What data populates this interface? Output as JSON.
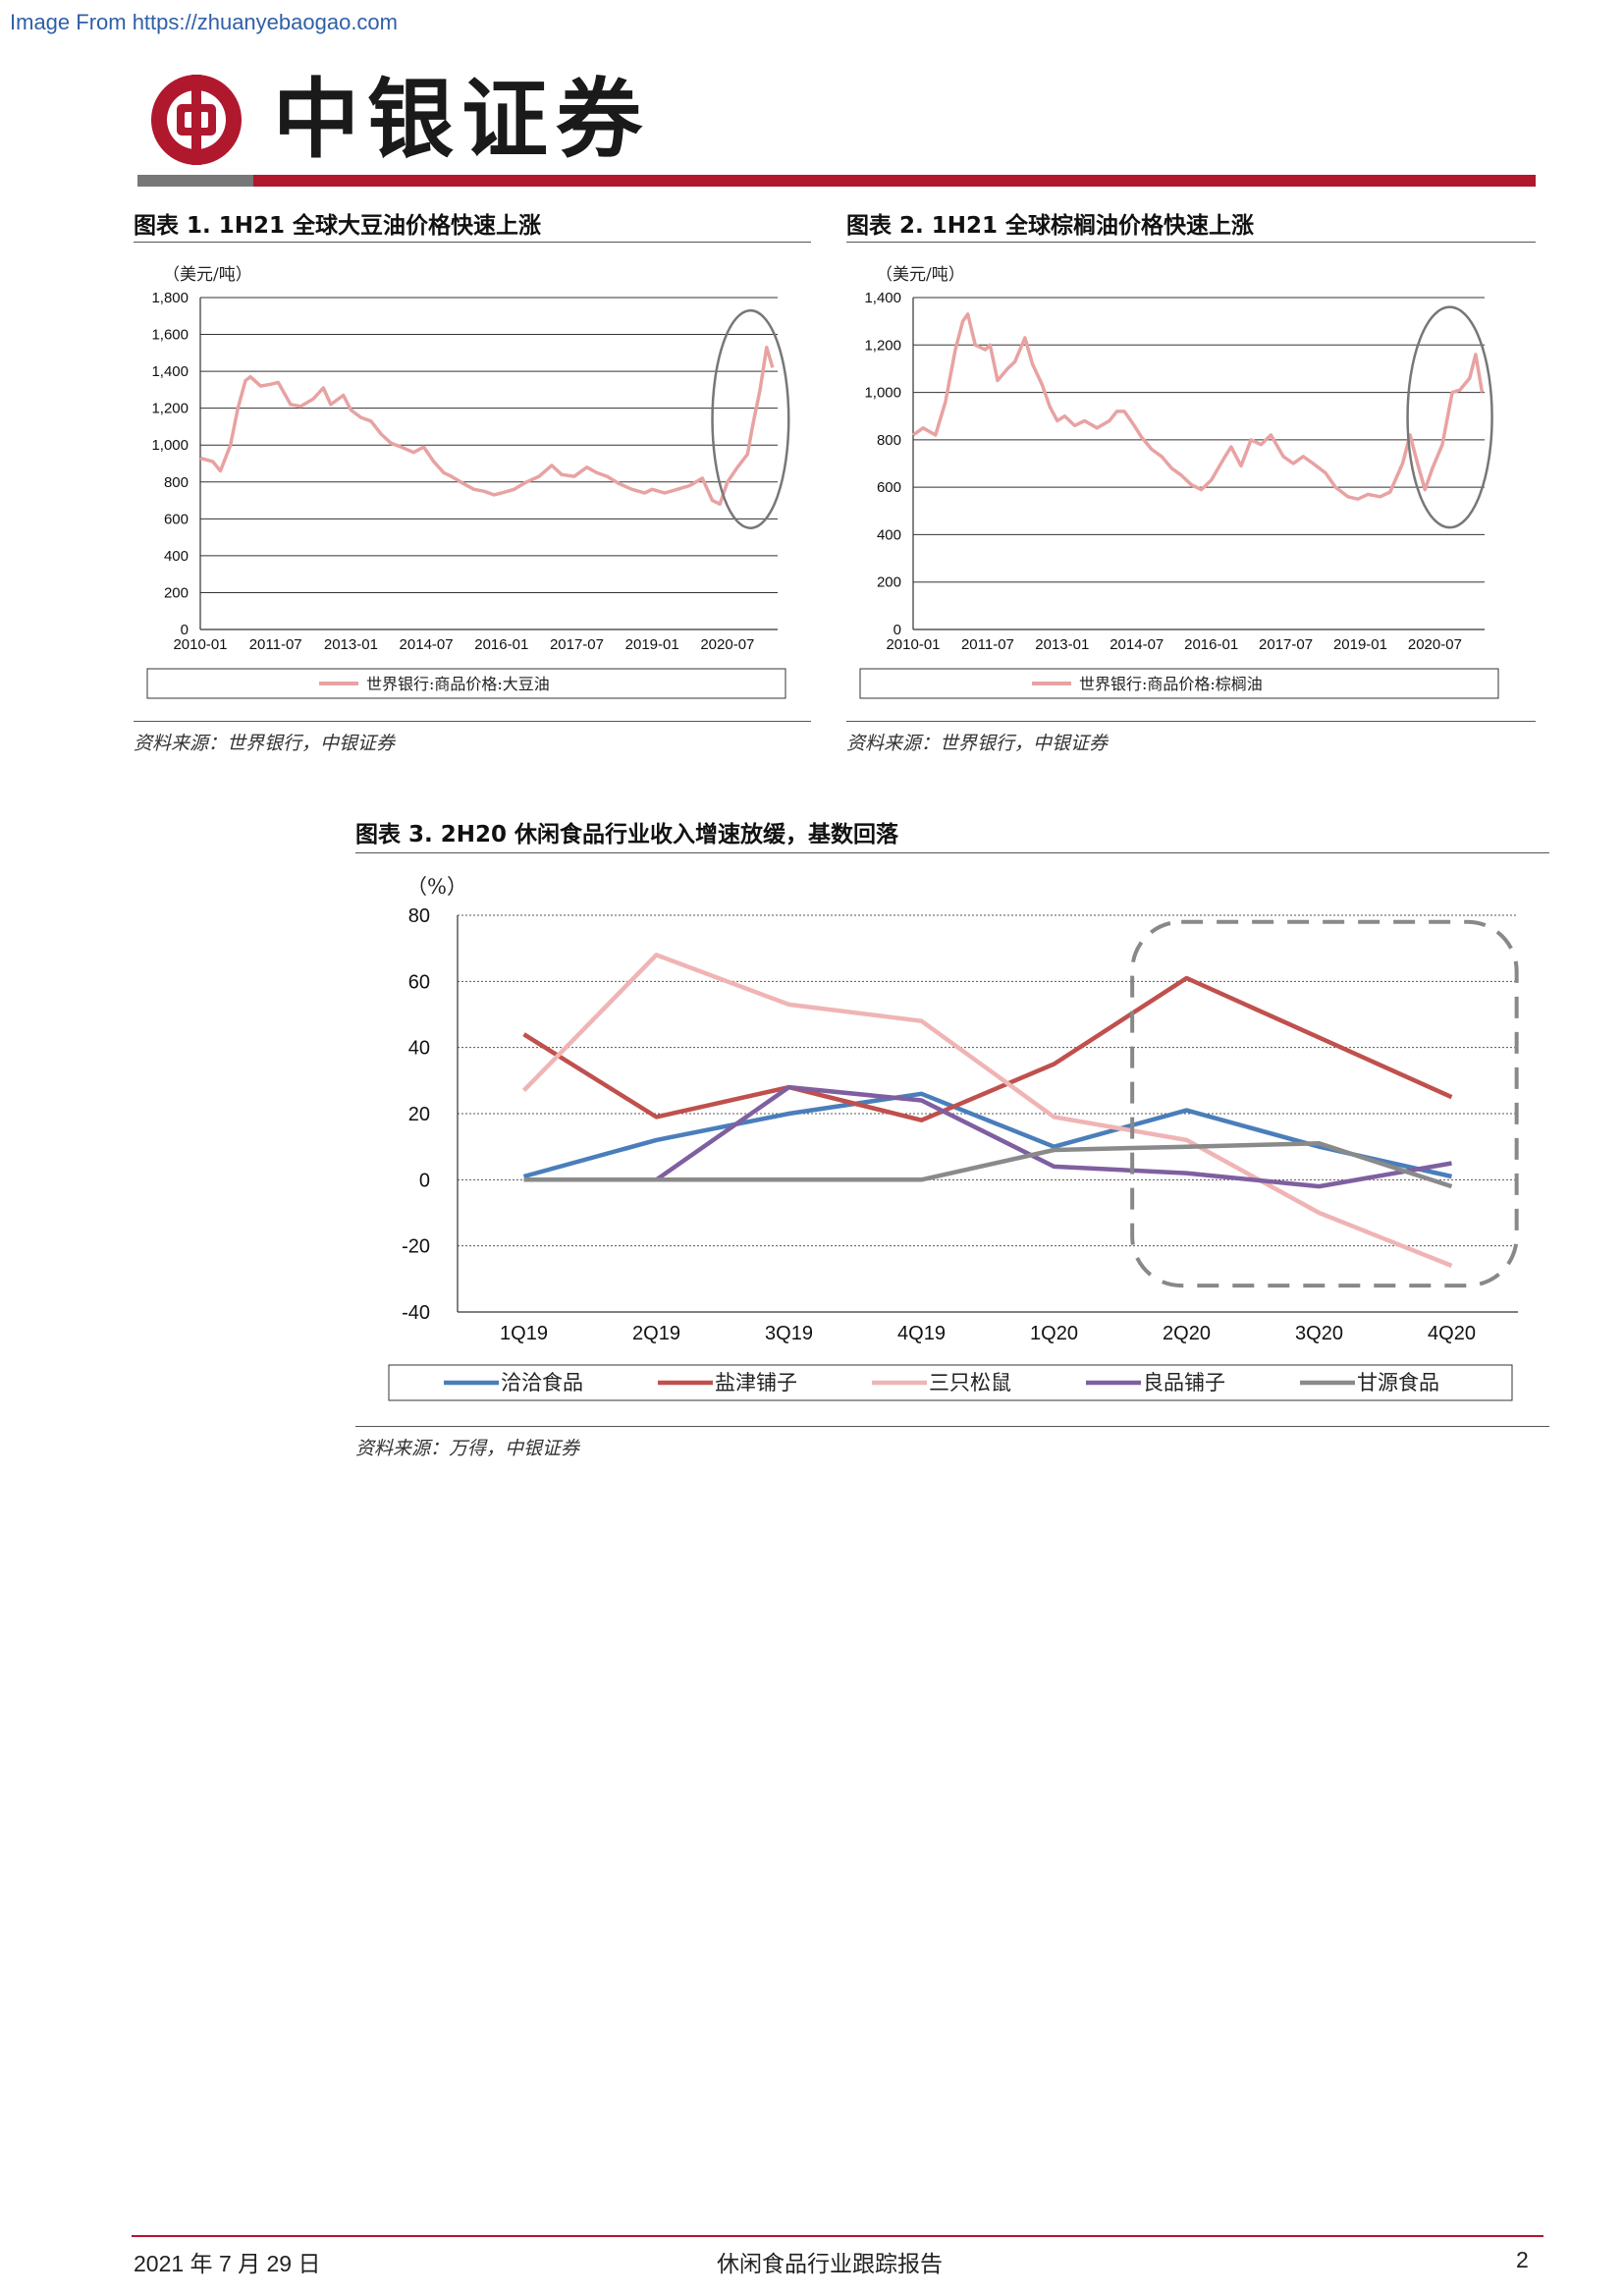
{
  "watermark": "Image From https://zhuanyebaogao.com",
  "header": {
    "brand": "中银证券"
  },
  "colors": {
    "brand_red": "#b0182e",
    "circle": "#777777"
  },
  "figures": [
    {
      "title": "图表 1. 1H21 全球大豆油价格快速上涨",
      "source": "资料来源：世界银行，中银证券"
    },
    {
      "title": "图表 2. 1H21 全球棕榈油价格快速上涨",
      "source": "资料来源：世界银行，中银证券"
    },
    {
      "title": "图表 3. 2H20 休闲食品行业收入增速放缓，基数回落",
      "source": "资料来源：万得，中银证券"
    }
  ],
  "chart_data": [
    {
      "type": "line",
      "unit": "（美元/吨）",
      "ylim": [
        0,
        1800
      ],
      "yticks": [
        "0",
        "200",
        "400",
        "600",
        "800",
        "1,000",
        "1,200",
        "1,400",
        "1,600",
        "1,800"
      ],
      "ytick_values": [
        0,
        200,
        400,
        600,
        800,
        1000,
        1200,
        1400,
        1600,
        1800
      ],
      "xlim": [
        2010.0,
        2021.5
      ],
      "xticks": [
        "2010-01",
        "2011-07",
        "2013-01",
        "2014-07",
        "2016-01",
        "2017-07",
        "2019-01",
        "2020-07"
      ],
      "xtick_values": [
        2010.0,
        2011.5,
        2013.0,
        2014.5,
        2016.0,
        2017.5,
        2019.0,
        2020.5
      ],
      "grid": true,
      "legend_position": "bottom",
      "annotation": "ellipse around 2020-07 to 2021-06",
      "series": [
        {
          "name": "世界银行:商品价格:大豆油",
          "color": "#e8a2a2",
          "points": [
            [
              2010.0,
              930
            ],
            [
              2010.25,
              910
            ],
            [
              2010.4,
              860
            ],
            [
              2010.6,
              1000
            ],
            [
              2010.75,
              1200
            ],
            [
              2010.9,
              1350
            ],
            [
              2011.0,
              1370
            ],
            [
              2011.2,
              1320
            ],
            [
              2011.4,
              1330
            ],
            [
              2011.55,
              1340
            ],
            [
              2011.8,
              1220
            ],
            [
              2012.0,
              1210
            ],
            [
              2012.25,
              1250
            ],
            [
              2012.45,
              1310
            ],
            [
              2012.6,
              1220
            ],
            [
              2012.85,
              1270
            ],
            [
              2013.0,
              1190
            ],
            [
              2013.2,
              1150
            ],
            [
              2013.4,
              1130
            ],
            [
              2013.6,
              1060
            ],
            [
              2013.8,
              1010
            ],
            [
              2014.0,
              990
            ],
            [
              2014.25,
              960
            ],
            [
              2014.45,
              990
            ],
            [
              2014.65,
              910
            ],
            [
              2014.85,
              850
            ],
            [
              2015.0,
              830
            ],
            [
              2015.25,
              790
            ],
            [
              2015.45,
              760
            ],
            [
              2015.65,
              750
            ],
            [
              2015.85,
              730
            ],
            [
              2016.0,
              740
            ],
            [
              2016.25,
              760
            ],
            [
              2016.5,
              800
            ],
            [
              2016.75,
              830
            ],
            [
              2017.0,
              890
            ],
            [
              2017.2,
              840
            ],
            [
              2017.45,
              830
            ],
            [
              2017.7,
              880
            ],
            [
              2017.9,
              850
            ],
            [
              2018.1,
              830
            ],
            [
              2018.35,
              790
            ],
            [
              2018.6,
              760
            ],
            [
              2018.85,
              740
            ],
            [
              2019.0,
              760
            ],
            [
              2019.25,
              740
            ],
            [
              2019.5,
              760
            ],
            [
              2019.75,
              780
            ],
            [
              2020.0,
              820
            ],
            [
              2020.2,
              700
            ],
            [
              2020.35,
              680
            ],
            [
              2020.5,
              800
            ],
            [
              2020.7,
              880
            ],
            [
              2020.9,
              950
            ],
            [
              2021.0,
              1100
            ],
            [
              2021.15,
              1300
            ],
            [
              2021.28,
              1530
            ],
            [
              2021.4,
              1420
            ]
          ]
        }
      ]
    },
    {
      "type": "line",
      "unit": "（美元/吨）",
      "ylim": [
        0,
        1400
      ],
      "yticks": [
        "0",
        "200",
        "400",
        "600",
        "800",
        "1,000",
        "1,200",
        "1,400"
      ],
      "ytick_values": [
        0,
        200,
        400,
        600,
        800,
        1000,
        1200,
        1400
      ],
      "xlim": [
        2010.0,
        2021.5
      ],
      "xticks": [
        "2010-01",
        "2011-07",
        "2013-01",
        "2014-07",
        "2016-01",
        "2017-07",
        "2019-01",
        "2020-07"
      ],
      "xtick_values": [
        2010.0,
        2011.5,
        2013.0,
        2014.5,
        2016.0,
        2017.5,
        2019.0,
        2020.5
      ],
      "grid": true,
      "legend_position": "bottom",
      "annotation": "ellipse around 2020-01 to 2021-06",
      "series": [
        {
          "name": "世界银行:商品价格:棕榈油",
          "color": "#e8a2a2",
          "points": [
            [
              2010.0,
              820
            ],
            [
              2010.2,
              850
            ],
            [
              2010.45,
              820
            ],
            [
              2010.65,
              960
            ],
            [
              2010.85,
              1180
            ],
            [
              2011.0,
              1300
            ],
            [
              2011.1,
              1330
            ],
            [
              2011.25,
              1200
            ],
            [
              2011.45,
              1180
            ],
            [
              2011.55,
              1200
            ],
            [
              2011.7,
              1050
            ],
            [
              2011.9,
              1100
            ],
            [
              2012.05,
              1130
            ],
            [
              2012.25,
              1230
            ],
            [
              2012.4,
              1120
            ],
            [
              2012.6,
              1030
            ],
            [
              2012.75,
              940
            ],
            [
              2012.9,
              880
            ],
            [
              2013.05,
              900
            ],
            [
              2013.25,
              860
            ],
            [
              2013.45,
              880
            ],
            [
              2013.7,
              850
            ],
            [
              2013.95,
              880
            ],
            [
              2014.1,
              920
            ],
            [
              2014.25,
              920
            ],
            [
              2014.45,
              860
            ],
            [
              2014.6,
              810
            ],
            [
              2014.8,
              760
            ],
            [
              2015.0,
              730
            ],
            [
              2015.2,
              680
            ],
            [
              2015.4,
              650
            ],
            [
              2015.6,
              610
            ],
            [
              2015.8,
              590
            ],
            [
              2016.0,
              630
            ],
            [
              2016.25,
              720
            ],
            [
              2016.4,
              770
            ],
            [
              2016.6,
              690
            ],
            [
              2016.8,
              800
            ],
            [
              2017.0,
              780
            ],
            [
              2017.2,
              820
            ],
            [
              2017.45,
              730
            ],
            [
              2017.65,
              700
            ],
            [
              2017.85,
              730
            ],
            [
              2018.05,
              700
            ],
            [
              2018.3,
              660
            ],
            [
              2018.5,
              600
            ],
            [
              2018.75,
              560
            ],
            [
              2018.95,
              550
            ],
            [
              2019.15,
              570
            ],
            [
              2019.4,
              560
            ],
            [
              2019.6,
              580
            ],
            [
              2019.85,
              700
            ],
            [
              2020.0,
              820
            ],
            [
              2020.15,
              700
            ],
            [
              2020.3,
              590
            ],
            [
              2020.45,
              680
            ],
            [
              2020.65,
              780
            ],
            [
              2020.85,
              1000
            ],
            [
              2021.0,
              1010
            ],
            [
              2021.2,
              1060
            ],
            [
              2021.32,
              1160
            ],
            [
              2021.45,
              1000
            ]
          ]
        }
      ]
    },
    {
      "type": "line",
      "unit": "（%）",
      "ylim": [
        -40,
        80
      ],
      "yticks": [
        "-40",
        "-20",
        "0",
        "20",
        "40",
        "60",
        "80"
      ],
      "ytick_values": [
        -40,
        -20,
        0,
        20,
        40,
        60,
        80
      ],
      "categories": [
        "1Q19",
        "2Q19",
        "3Q19",
        "4Q19",
        "1Q20",
        "2Q20",
        "3Q20",
        "4Q20"
      ],
      "grid": true,
      "legend_position": "bottom",
      "annotation": "dashed rounded box around 2Q20–4Q20",
      "series": [
        {
          "name": "洽洽食品",
          "color": "#4a7ebb",
          "values": [
            1,
            12,
            20,
            26,
            10,
            21,
            10,
            1
          ]
        },
        {
          "name": "盐津铺子",
          "color": "#c0504d",
          "values": [
            44,
            19,
            28,
            18,
            35,
            61,
            43,
            25
          ]
        },
        {
          "name": "三只松鼠",
          "color": "#f0b4b4",
          "values": [
            27,
            68,
            53,
            48,
            19,
            12,
            -10,
            -26
          ]
        },
        {
          "name": "良品铺子",
          "color": "#7f5fa0",
          "values": [
            0,
            0,
            28,
            24,
            4,
            2,
            -2,
            5
          ]
        },
        {
          "name": "甘源食品",
          "color": "#8a8a8a",
          "values": [
            0,
            0,
            0,
            0,
            9,
            10,
            11,
            -2
          ]
        }
      ]
    }
  ],
  "footer": {
    "date": "2021 年 7 月 29 日",
    "title": "休闲食品行业跟踪报告",
    "page": "2"
  }
}
